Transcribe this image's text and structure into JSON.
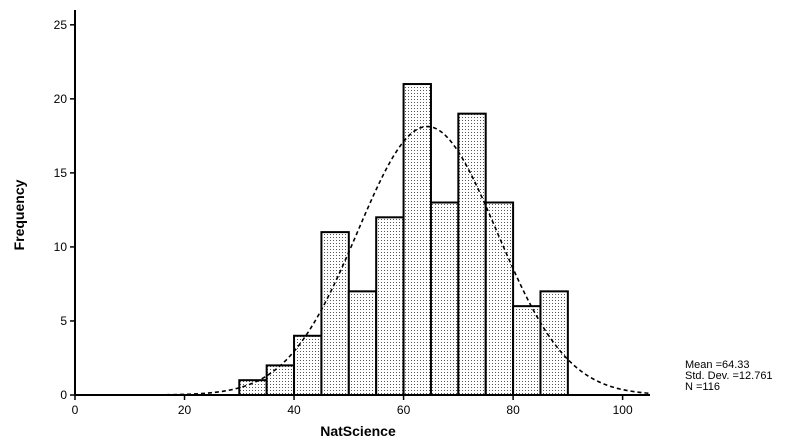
{
  "chart_data": {
    "type": "bar",
    "title": "",
    "xlabel": "NatScience",
    "ylabel": "Frequency",
    "xlim": [
      0,
      105
    ],
    "ylim": [
      0,
      26
    ],
    "x_ticks": [
      0,
      20,
      40,
      60,
      80,
      100
    ],
    "y_ticks": [
      0,
      5,
      10,
      15,
      20,
      25
    ],
    "bin_width": 5,
    "bins": [
      {
        "start": 30,
        "end": 35,
        "value": 1
      },
      {
        "start": 35,
        "end": 40,
        "value": 2
      },
      {
        "start": 40,
        "end": 45,
        "value": 4
      },
      {
        "start": 45,
        "end": 50,
        "value": 11
      },
      {
        "start": 50,
        "end": 55,
        "value": 7
      },
      {
        "start": 55,
        "end": 60,
        "value": 12
      },
      {
        "start": 60,
        "end": 65,
        "value": 21
      },
      {
        "start": 65,
        "end": 70,
        "value": 13
      },
      {
        "start": 70,
        "end": 75,
        "value": 19
      },
      {
        "start": 75,
        "end": 80,
        "value": 13
      },
      {
        "start": 80,
        "end": 85,
        "value": 6
      },
      {
        "start": 85,
        "end": 90,
        "value": 7
      }
    ],
    "normal_curve": {
      "mean": 64.33,
      "std_dev": 12.761,
      "n": 116
    },
    "stats": {
      "mean_label": "Mean =64.33",
      "std_label": "Std. Dev. =12.761",
      "n_label": "N =116"
    }
  }
}
